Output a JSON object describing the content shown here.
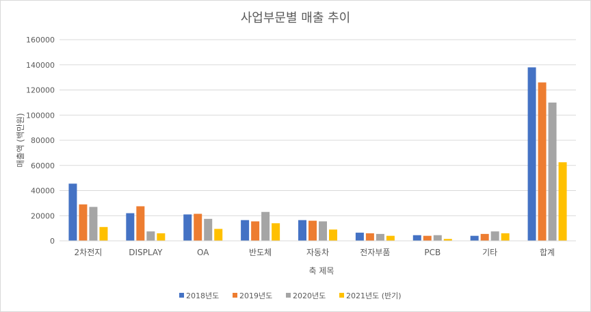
{
  "chart_data": {
    "type": "bar",
    "title": "사업부문별 매출 추이",
    "xlabel": "축 제목",
    "ylabel": "매출액 (백만원)",
    "ylim": [
      0,
      160000
    ],
    "yticks": [
      "0",
      "20000",
      "40000",
      "60000",
      "80000",
      "100000",
      "120000",
      "140000",
      "160000"
    ],
    "categories": [
      "2차전지",
      "DISPLAY",
      "OA",
      "반도체",
      "자동차",
      "전자부품",
      "PCB",
      "기타",
      "합계"
    ],
    "series": [
      {
        "name": "2018년도",
        "color": "#4472c4",
        "values": [
          45500,
          22000,
          21000,
          16500,
          16500,
          6500,
          4500,
          4000,
          138000
        ]
      },
      {
        "name": "2019년도",
        "color": "#ed7d31",
        "values": [
          29000,
          27500,
          21500,
          15500,
          16000,
          6000,
          4000,
          5500,
          126000
        ]
      },
      {
        "name": "2020년도",
        "color": "#a5a5a5",
        "values": [
          27000,
          7500,
          17500,
          23000,
          15500,
          5500,
          4500,
          7500,
          110000
        ]
      },
      {
        "name": "2021년도 (반기)",
        "color": "#ffc000",
        "values": [
          11000,
          6000,
          9500,
          14000,
          9000,
          4000,
          1500,
          6000,
          62500
        ]
      }
    ],
    "legend_position": "bottom",
    "grid": true
  }
}
